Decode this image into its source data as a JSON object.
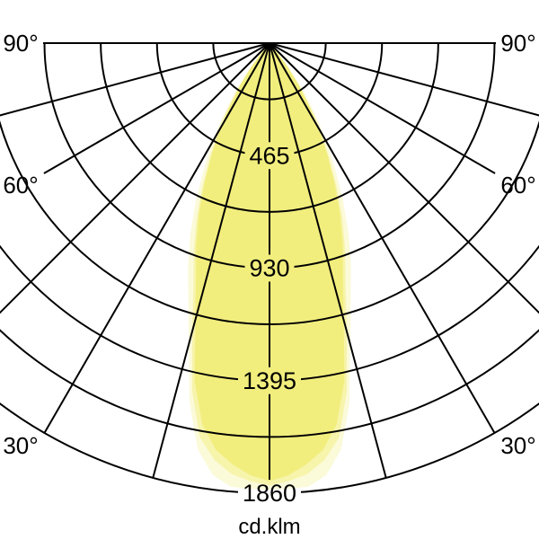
{
  "unit_label": "cd.klm",
  "colors": {
    "background": "#ffffff",
    "grid_line": "#000000",
    "text": "#000000",
    "beam_main": "#f2ee7e",
    "beam_halo_mid": "#f7f4ab",
    "beam_halo_outer": "#fbfad9"
  },
  "chart_data": {
    "type": "polar-photometric",
    "title": "",
    "unit_label": "cd.klm",
    "max_value_cd_klm": 1860,
    "grid": {
      "angle_step_deg": 15,
      "angle_range_deg": [
        -90,
        90
      ],
      "arc_count": 8,
      "arc_step_cd_klm": 232.5,
      "labeled_arc_every": 2,
      "grid_on": true
    },
    "angle_tick_labels": [
      {
        "text": "90°",
        "deg": 90,
        "side": "left"
      },
      {
        "text": "90°",
        "deg": 90,
        "side": "right"
      },
      {
        "text": "60°",
        "deg": 60,
        "side": "left"
      },
      {
        "text": "60°",
        "deg": 60,
        "side": "right"
      },
      {
        "text": "30°",
        "deg": 30,
        "side": "left"
      },
      {
        "text": "30°",
        "deg": 30,
        "side": "right"
      }
    ],
    "radial_tick_labels": [
      {
        "text": "465",
        "value": 465
      },
      {
        "text": "930",
        "value": 930
      },
      {
        "text": "1395",
        "value": 1395
      },
      {
        "text": "1860",
        "value": 1860
      }
    ],
    "series": [
      {
        "name": "beam-halo-outer",
        "color_key": "beam_halo_outer",
        "points_deg_cd": [
          [
            0,
            1845
          ],
          [
            2.5,
            1844
          ],
          [
            5,
            1840
          ],
          [
            7.5,
            1800
          ],
          [
            10,
            1705
          ],
          [
            12.5,
            1525
          ],
          [
            15,
            1290
          ],
          [
            17.5,
            1115
          ],
          [
            20,
            985
          ],
          [
            22.5,
            855
          ],
          [
            25,
            720
          ],
          [
            27.5,
            590
          ],
          [
            30,
            475
          ],
          [
            32.5,
            358
          ],
          [
            35,
            252
          ],
          [
            37.5,
            152
          ],
          [
            40,
            68
          ],
          [
            42.5,
            0
          ]
        ]
      },
      {
        "name": "beam-halo-mid",
        "color_key": "beam_halo_mid",
        "points_deg_cd": [
          [
            0,
            1828
          ],
          [
            2.5,
            1812
          ],
          [
            5,
            1788
          ],
          [
            7.5,
            1738
          ],
          [
            10,
            1655
          ],
          [
            12.5,
            1475
          ],
          [
            15,
            1235
          ],
          [
            17.5,
            1045
          ],
          [
            20,
            915
          ],
          [
            22.5,
            788
          ],
          [
            25,
            658
          ],
          [
            27.5,
            533
          ],
          [
            30,
            428
          ],
          [
            32.5,
            318
          ],
          [
            35,
            218
          ],
          [
            37.5,
            128
          ],
          [
            40,
            55
          ],
          [
            42.5,
            0
          ]
        ]
      },
      {
        "name": "beam-main",
        "color_key": "beam_main",
        "points_deg_cd": [
          [
            0,
            1810
          ],
          [
            2.5,
            1788
          ],
          [
            5,
            1748
          ],
          [
            7.5,
            1695
          ],
          [
            10,
            1600
          ],
          [
            12.5,
            1430
          ],
          [
            15,
            1185
          ],
          [
            17.5,
            1010
          ],
          [
            20,
            888
          ],
          [
            22.5,
            762
          ],
          [
            25,
            635
          ],
          [
            27.5,
            515
          ],
          [
            30,
            412
          ],
          [
            32.5,
            300
          ],
          [
            35,
            205
          ],
          [
            37.5,
            115
          ],
          [
            40,
            40
          ],
          [
            42.5,
            0
          ]
        ]
      }
    ],
    "legend_position": "none",
    "notes": "Polar luminaire light-distribution curve; 0 deg points straight down from origin at top center; radial unit cd/klm."
  }
}
